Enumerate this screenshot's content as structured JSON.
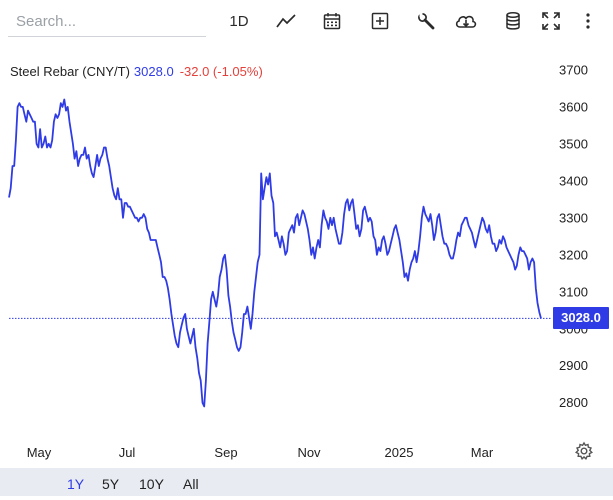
{
  "toolbar": {
    "search_placeholder": "Search...",
    "interval": "1D",
    "icons": [
      "line-chart-icon",
      "calendar-icon",
      "plus-box-icon",
      "wrench-icon",
      "cloud-download-icon",
      "database-icon",
      "fullscreen-icon",
      "more-vertical-icon"
    ]
  },
  "legend": {
    "symbol": "Steel Rebar (CNY/T)",
    "price": "3028.0",
    "change": "-32.0 (-1.05%)"
  },
  "price_tag": "3028.0",
  "range_buttons": [
    "1Y",
    "5Y",
    "10Y",
    "All"
  ],
  "active_range": "1Y",
  "colors": {
    "line": "#2f3ce6",
    "change_negative": "#e5403b",
    "rangebar_bg": "#e8ebf2"
  },
  "chart_data": {
    "type": "line",
    "title": "Steel Rebar (CNY/T)",
    "x_labels": [
      "May",
      "Jul",
      "Sep",
      "Nov",
      "2025",
      "Mar"
    ],
    "y_ticks": [
      2800,
      2900,
      3000,
      3100,
      3200,
      3300,
      3400,
      3500,
      3600,
      3700
    ],
    "ylim": [
      2710,
      3770
    ],
    "last_value": 3028.0,
    "grid": false,
    "series": [
      {
        "name": "Steel Rebar (CNY/T)",
        "values": [
          3355,
          3380,
          3440,
          3440,
          3510,
          3600,
          3610,
          3600,
          3600,
          3580,
          3560,
          3590,
          3580,
          3570,
          3560,
          3560,
          3500,
          3490,
          3540,
          3490,
          3500,
          3520,
          3490,
          3500,
          3490,
          3510,
          3560,
          3580,
          3570,
          3580,
          3610,
          3600,
          3620,
          3590,
          3600,
          3560,
          3530,
          3500,
          3460,
          3480,
          3440,
          3460,
          3470,
          3470,
          3490,
          3460,
          3470,
          3440,
          3420,
          3410,
          3440,
          3470,
          3440,
          3460,
          3470,
          3490,
          3490,
          3460,
          3440,
          3410,
          3380,
          3360,
          3350,
          3380,
          3350,
          3350,
          3300,
          3340,
          3340,
          3330,
          3330,
          3320,
          3310,
          3300,
          3300,
          3290,
          3300,
          3300,
          3310,
          3300,
          3270,
          3260,
          3240,
          3240,
          3240,
          3240,
          3220,
          3200,
          3180,
          3140,
          3140,
          3130,
          3110,
          3080,
          3040,
          3010,
          2980,
          2960,
          2950,
          2990,
          3010,
          3030,
          3040,
          3000,
          2980,
          2960,
          2980,
          3000,
          2950,
          2920,
          2880,
          2860,
          2800,
          2790,
          2860,
          2960,
          3020,
          3080,
          3100,
          3080,
          3060,
          3090,
          3140,
          3160,
          3190,
          3200,
          3160,
          3090,
          3060,
          3020,
          2990,
          2970,
          2950,
          2940,
          2950,
          2990,
          3040,
          3040,
          3060,
          3030,
          3000,
          3040,
          3100,
          3140,
          3180,
          3200,
          3420,
          3350,
          3380,
          3410,
          3390,
          3420,
          3360,
          3340,
          3250,
          3260,
          3240,
          3220,
          3250,
          3230,
          3200,
          3210,
          3260,
          3270,
          3280,
          3260,
          3300,
          3310,
          3280,
          3300,
          3320,
          3310,
          3290,
          3270,
          3240,
          3200,
          3220,
          3190,
          3220,
          3240,
          3220,
          3280,
          3320,
          3300,
          3290,
          3270,
          3300,
          3280,
          3300,
          3270,
          3250,
          3230,
          3230,
          3260,
          3310,
          3340,
          3350,
          3320,
          3340,
          3350,
          3310,
          3270,
          3280,
          3250,
          3270,
          3320,
          3330,
          3310,
          3290,
          3300,
          3290,
          3250,
          3240,
          3200,
          3220,
          3210,
          3240,
          3250,
          3230,
          3200,
          3210,
          3230,
          3250,
          3270,
          3280,
          3260,
          3240,
          3210,
          3180,
          3140,
          3150,
          3130,
          3160,
          3180,
          3190,
          3210,
          3180,
          3210,
          3250,
          3300,
          3330,
          3310,
          3300,
          3290,
          3310,
          3280,
          3240,
          3260,
          3300,
          3310,
          3280,
          3250,
          3230,
          3230,
          3220,
          3200,
          3190,
          3190,
          3210,
          3240,
          3260,
          3250,
          3280,
          3290,
          3300,
          3300,
          3280,
          3270,
          3260,
          3240,
          3220,
          3240,
          3260,
          3280,
          3300,
          3290,
          3270,
          3260,
          3280,
          3250,
          3230,
          3230,
          3210,
          3220,
          3240,
          3230,
          3250,
          3240,
          3220,
          3210,
          3200,
          3190,
          3180,
          3160,
          3170,
          3200,
          3220,
          3210,
          3210,
          3200,
          3190,
          3160,
          3180,
          3190,
          3180,
          3110,
          3070,
          3045,
          3028
        ]
      }
    ]
  }
}
